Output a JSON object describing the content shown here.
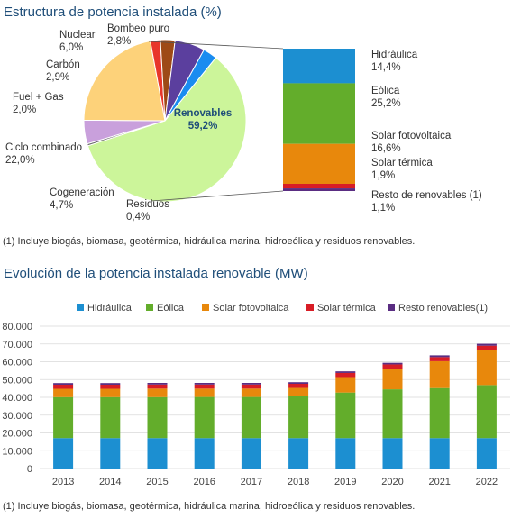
{
  "chart_data": [
    {
      "type": "pie",
      "title": "Estructura de potencia instalada (%)",
      "slices": [
        {
          "name": "Renovables",
          "value": 59.2,
          "value_text": "59,2%",
          "color": "#ccf59a"
        },
        {
          "name": "Residuos",
          "value": 0.4,
          "value_text": "0,4%",
          "color": "#6b6b6b"
        },
        {
          "name": "Cogeneración",
          "value": 4.7,
          "value_text": "4,7%",
          "color": "#c9a0dc"
        },
        {
          "name": "Ciclo combinado",
          "value": 22.0,
          "value_text": "22,0%",
          "color": "#fdd27a"
        },
        {
          "name": "Fuel + Gas",
          "value": 2.0,
          "value_text": "2,0%",
          "color": "#e8362a"
        },
        {
          "name": "Carbón",
          "value": 2.9,
          "value_text": "2,9%",
          "color": "#9e4a16"
        },
        {
          "name": "Nuclear",
          "value": 6.0,
          "value_text": "6,0%",
          "color": "#5b3f9e"
        },
        {
          "name": "Bombeo puro",
          "value": 2.8,
          "value_text": "2,8%",
          "color": "#1a8cf0"
        }
      ],
      "breakdown": {
        "of": "Renovables",
        "segments": [
          {
            "name": "Hidráulica",
            "value": 14.4,
            "value_text": "14,4%",
            "color": "#1c8fd1"
          },
          {
            "name": "Eólica",
            "value": 25.2,
            "value_text": "25,2%",
            "color": "#63ad2b"
          },
          {
            "name": "Solar fotovoltaica",
            "value": 16.6,
            "value_text": "16,6%",
            "color": "#e8880c"
          },
          {
            "name": "Solar térmica",
            "value": 1.9,
            "value_text": "1,9%",
            "color": "#d81d26"
          },
          {
            "name": "Resto de renovables (1)",
            "value": 1.1,
            "value_text": "1,1%",
            "color": "#5a2d82"
          }
        ]
      },
      "note": "(1) Incluye biogás, biomasa, geotérmica, hidráulica marina, hidroeólica y residuos renovables."
    },
    {
      "type": "bar",
      "stacked": true,
      "title": "Evolución de la potencia instalada renovable (MW)",
      "categories": [
        "2013",
        "2014",
        "2015",
        "2016",
        "2017",
        "2018",
        "2019",
        "2020",
        "2021",
        "2022"
      ],
      "series": [
        {
          "name": "Hidráulica",
          "color": "#1c8fd1",
          "values": [
            17100,
            17100,
            17100,
            17100,
            17100,
            17100,
            17100,
            17100,
            17100,
            17100
          ]
        },
        {
          "name": "Eólica",
          "color": "#63ad2b",
          "values": [
            23000,
            23000,
            23000,
            23100,
            23100,
            23500,
            25600,
            27400,
            28100,
            29800
          ]
        },
        {
          "name": "Solar fotovoltaica",
          "color": "#e8880c",
          "values": [
            4700,
            4700,
            4800,
            4700,
            4700,
            4700,
            8700,
            11700,
            15100,
            19800
          ]
        },
        {
          "name": "Solar térmica",
          "color": "#d81d26",
          "values": [
            2300,
            2300,
            2300,
            2300,
            2300,
            2300,
            2300,
            2300,
            2300,
            2300
          ]
        },
        {
          "name": "Resto renovables(1)",
          "color": "#5a2d82",
          "values": [
            900,
            900,
            900,
            900,
            900,
            900,
            900,
            900,
            1000,
            1100
          ]
        }
      ],
      "ylim": [
        0,
        80000
      ],
      "yticks": [
        0,
        10000,
        20000,
        30000,
        40000,
        50000,
        60000,
        70000,
        80000
      ],
      "ytick_labels": [
        "0",
        "10.000",
        "20.000",
        "30.000",
        "40.000",
        "50.000",
        "60.000",
        "70.000",
        "80.000"
      ],
      "grid": true,
      "legend": "top",
      "note": "(1) Incluye biogás, biomasa, geotérmica, hidráulica marina, hidroeólica y residuos renovables."
    }
  ]
}
